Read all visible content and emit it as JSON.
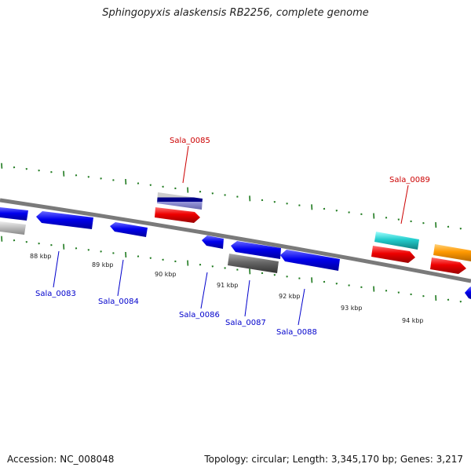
{
  "title": "Sphingopyxis alaskensis RB2256, complete genome",
  "footer": {
    "accession": "Accession: NC_008048",
    "summary": "Topology: circular; Length: 3,345,170 bp; Genes: 3,217"
  },
  "colors": {
    "backbone": "#8a8a8a",
    "ticks": "#1f7a1f",
    "forward_label": "#cc0000",
    "reverse_label": "#0000cc",
    "gene_blue": "#0000ee",
    "gene_red": "#ee0000",
    "gene_cyan": "#22cccc",
    "gene_orange": "#ff9900",
    "gene_gray": "#666666",
    "gene_lightgray": "#bbbbbb",
    "gene_navy": "#000088"
  },
  "kbp_labels": [
    "88 kbp",
    "89 kbp",
    "90 kbp",
    "91 kbp",
    "92 kbp",
    "93 kbp",
    "94 kbp"
  ],
  "gene_labels": {
    "forward": [
      "Sala_0085",
      "Sala_0089"
    ],
    "reverse": [
      "Sala_0083",
      "Sala_0084",
      "Sala_0086",
      "Sala_0087",
      "Sala_0088"
    ]
  }
}
